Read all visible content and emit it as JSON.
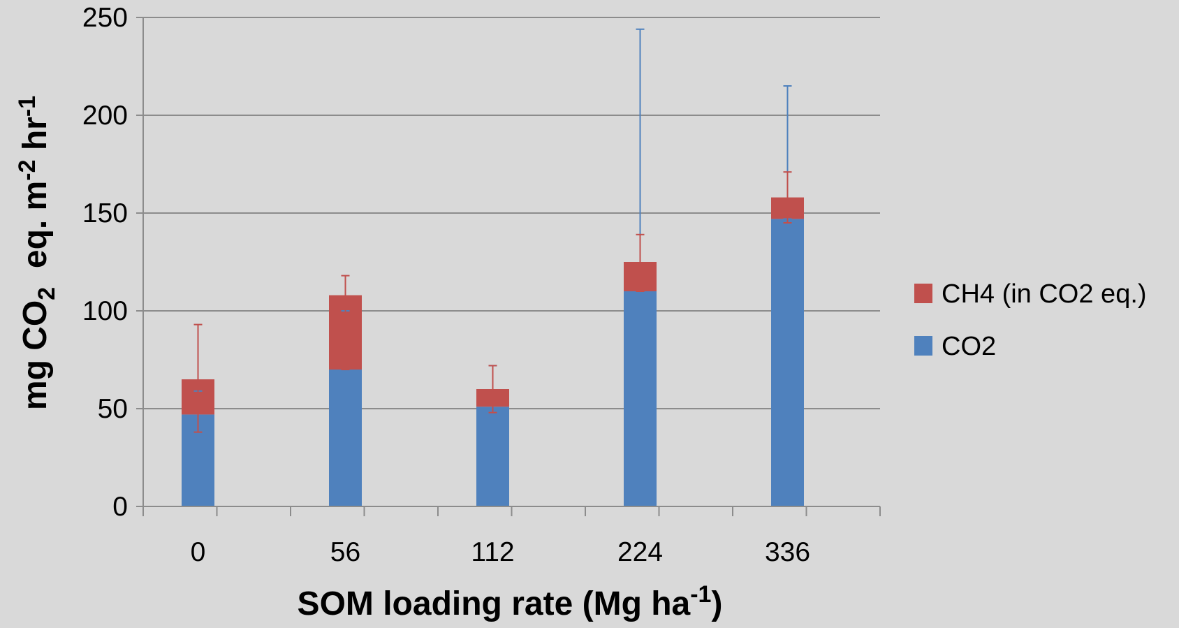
{
  "chart_data": {
    "type": "bar",
    "stacked": true,
    "categories": [
      "0",
      "56",
      "112",
      "224",
      "336"
    ],
    "series": [
      {
        "name": "CO2",
        "color": "#4f81bd",
        "values": [
          47,
          70,
          51,
          110,
          147
        ],
        "error_upper": [
          59,
          100,
          72,
          244,
          215
        ],
        "error_lower": [
          38,
          70,
          48,
          110,
          147
        ]
      },
      {
        "name": "CH4 (in CO2 eq.)",
        "color": "#c0504d",
        "values": [
          18,
          38,
          9,
          15,
          11
        ],
        "error_upper": [
          93,
          118,
          72,
          139,
          171
        ],
        "error_lower": [
          38,
          70,
          48,
          110,
          145
        ]
      }
    ],
    "xlabel": {
      "main": "SOM loading rate (Mg ha",
      "sup": "-1",
      "end": ")"
    },
    "ylabel": {
      "p1": "mg CO",
      "sub1": "2",
      "p2": "  eq. m",
      "sup1": "-2",
      "p3": " hr",
      "sup2": "-1"
    },
    "yticks": [
      "0",
      "50",
      "100",
      "150",
      "200",
      "250"
    ],
    "ylim": [
      0,
      250
    ],
    "grid": true,
    "legend_position": "right",
    "legend_order": [
      "CH4 (in CO2 eq.)",
      "CO2"
    ],
    "colors": {
      "background": "#d9d9d9",
      "grid": "#8c8c8c",
      "axis": "#8c8c8c"
    }
  }
}
